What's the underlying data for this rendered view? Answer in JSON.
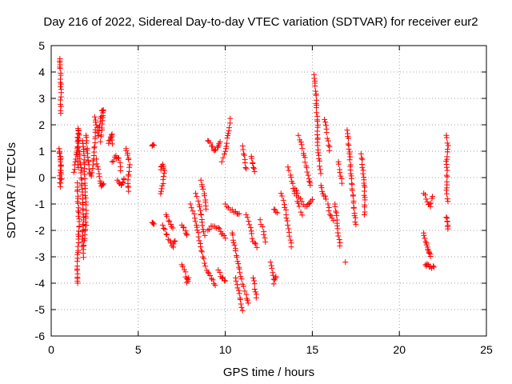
{
  "chart_data": {
    "type": "scatter",
    "title": "Day 216 of 2022, Sidereal Day-to-day VTEC variation (SDTVAR) for receiver eur2",
    "xlabel": "GPS time / hours",
    "ylabel": "SDTVAR / TECUs",
    "xlim": [
      0,
      25
    ],
    "ylim": [
      -6,
      5
    ],
    "xticks": [
      0,
      5,
      10,
      15,
      20,
      25
    ],
    "xtick_labels": [
      "0",
      "5",
      "10",
      "15",
      "20",
      "25"
    ],
    "yticks": [
      -6,
      -5,
      -4,
      -3,
      -2,
      -1,
      0,
      1,
      2,
      3,
      4,
      5
    ],
    "ytick_labels": [
      "-6",
      "-5",
      "-4",
      "-3",
      "-2",
      "-1",
      "0",
      "1",
      "2",
      "3",
      "4",
      "5"
    ],
    "grid": true,
    "marker": "+",
    "marker_color": "#ff0000",
    "series": [
      {
        "name": "SDTVAR",
        "traces": [
          [
            [
              0.45,
              1.1
            ],
            [
              0.5,
              0.9
            ],
            [
              0.55,
              0.4
            ],
            [
              0.6,
              0.0
            ],
            [
              0.5,
              -0.3
            ],
            [
              0.55,
              0.8
            ]
          ],
          [
            [
              0.5,
              4.5
            ],
            [
              0.5,
              4.3
            ],
            [
              0.55,
              4.0
            ],
            [
              0.55,
              3.3
            ],
            [
              0.55,
              2.4
            ]
          ],
          [
            [
              1.3,
              0.2
            ],
            [
              1.4,
              0.6
            ],
            [
              1.5,
              1.2
            ],
            [
              1.55,
              1.9
            ],
            [
              1.6,
              1.6
            ],
            [
              1.5,
              0.9
            ],
            [
              1.55,
              0.4
            ]
          ],
          [
            [
              1.5,
              -0.2
            ],
            [
              1.55,
              -1.0
            ],
            [
              1.6,
              -1.8
            ],
            [
              1.55,
              -2.6
            ],
            [
              1.5,
              -3.2
            ],
            [
              1.5,
              -3.8
            ],
            [
              1.5,
              -4.0
            ]
          ],
          [
            [
              1.6,
              1.0
            ],
            [
              1.7,
              0.5
            ],
            [
              1.75,
              -0.2
            ],
            [
              1.8,
              -0.8
            ],
            [
              1.85,
              -1.5
            ],
            [
              1.8,
              -2.2
            ],
            [
              1.8,
              -2.6
            ]
          ],
          [
            [
              1.8,
              1.4
            ],
            [
              1.9,
              0.6
            ],
            [
              1.95,
              -0.3
            ],
            [
              2.0,
              -1.2
            ],
            [
              2.0,
              -1.8
            ],
            [
              1.9,
              -2.4
            ],
            [
              1.85,
              -3.0
            ]
          ],
          [
            [
              2.0,
              1.6
            ],
            [
              2.1,
              0.8
            ],
            [
              2.2,
              0.2
            ],
            [
              2.3,
              0.1
            ],
            [
              2.4,
              0.5
            ],
            [
              2.5,
              1.2
            ],
            [
              2.55,
              1.8
            ]
          ],
          [
            [
              2.5,
              2.3
            ],
            [
              2.6,
              2.0
            ],
            [
              2.7,
              1.6
            ],
            [
              2.8,
              2.1
            ],
            [
              2.9,
              2.5
            ],
            [
              3.0,
              2.6
            ],
            [
              2.95,
              2.0
            ],
            [
              2.85,
              1.4
            ]
          ],
          [
            [
              2.6,
              0.7
            ],
            [
              2.7,
              0.3
            ],
            [
              2.8,
              -0.1
            ],
            [
              2.9,
              -0.3
            ],
            [
              3.0,
              -0.2
            ]
          ],
          [
            [
              3.3,
              1.3
            ],
            [
              3.4,
              1.5
            ],
            [
              3.5,
              1.6
            ],
            [
              3.5,
              1.3
            ]
          ],
          [
            [
              3.5,
              0.6
            ],
            [
              3.7,
              0.8
            ],
            [
              3.9,
              0.7
            ],
            [
              4.0,
              0.3
            ]
          ],
          [
            [
              3.8,
              -0.1
            ],
            [
              4.0,
              -0.3
            ],
            [
              4.1,
              -0.2
            ],
            [
              4.2,
              0.0
            ]
          ],
          [
            [
              4.3,
              1.1
            ],
            [
              4.4,
              0.9
            ],
            [
              4.5,
              0.5
            ],
            [
              4.4,
              -0.2
            ],
            [
              4.45,
              -0.5
            ]
          ],
          [
            [
              5.8,
              1.2
            ],
            [
              5.9,
              1.2
            ]
          ],
          [
            [
              5.8,
              -1.7
            ],
            [
              5.9,
              -1.8
            ]
          ],
          [
            [
              6.3,
              0.3
            ],
            [
              6.4,
              0.5
            ],
            [
              6.5,
              0.3
            ],
            [
              6.4,
              -0.3
            ],
            [
              6.3,
              -0.6
            ]
          ],
          [
            [
              6.4,
              -1.8
            ],
            [
              6.6,
              -2.1
            ],
            [
              6.8,
              -2.4
            ],
            [
              7.0,
              -2.6
            ],
            [
              7.1,
              -2.4
            ]
          ],
          [
            [
              6.6,
              -1.4
            ],
            [
              6.8,
              -1.7
            ],
            [
              7.0,
              -1.9
            ]
          ],
          [
            [
              7.5,
              -1.8
            ],
            [
              7.7,
              -2.0
            ],
            [
              7.8,
              -2.2
            ]
          ],
          [
            [
              7.5,
              -3.3
            ],
            [
              7.7,
              -3.6
            ],
            [
              7.8,
              -4.0
            ],
            [
              7.9,
              -3.8
            ]
          ],
          [
            [
              8.0,
              -1.0
            ],
            [
              8.2,
              -1.4
            ],
            [
              8.4,
              -2.0
            ],
            [
              8.6,
              -2.6
            ],
            [
              8.8,
              -3.2
            ],
            [
              9.0,
              -3.6
            ],
            [
              9.2,
              -3.8
            ],
            [
              9.4,
              -4.1
            ]
          ],
          [
            [
              8.3,
              -0.6
            ],
            [
              8.5,
              -1.0
            ],
            [
              8.7,
              -1.8
            ],
            [
              8.8,
              -2.2
            ]
          ],
          [
            [
              8.6,
              -0.1
            ],
            [
              8.8,
              -0.6
            ],
            [
              8.9,
              -1.2
            ]
          ],
          [
            [
              9.0,
              1.4
            ],
            [
              9.2,
              1.2
            ],
            [
              9.4,
              1.0
            ],
            [
              9.6,
              1.2
            ],
            [
              9.7,
              1.4
            ]
          ],
          [
            [
              9.0,
              -2.0
            ],
            [
              9.3,
              -1.8
            ],
            [
              9.6,
              -1.9
            ],
            [
              9.8,
              -2.1
            ],
            [
              10.0,
              -2.3
            ]
          ],
          [
            [
              9.6,
              -3.5
            ],
            [
              9.8,
              -3.8
            ],
            [
              10.0,
              -3.9
            ]
          ],
          [
            [
              9.8,
              0.6
            ],
            [
              10.0,
              1.0
            ],
            [
              10.2,
              1.8
            ],
            [
              10.3,
              2.2
            ]
          ],
          [
            [
              10.0,
              -1.0
            ],
            [
              10.3,
              -1.2
            ],
            [
              10.6,
              -1.3
            ],
            [
              10.8,
              -1.4
            ]
          ],
          [
            [
              10.4,
              -2.1
            ],
            [
              10.6,
              -2.8
            ],
            [
              10.8,
              -3.5
            ],
            [
              11.0,
              -4.0
            ],
            [
              11.2,
              -4.4
            ],
            [
              11.3,
              -4.8
            ]
          ],
          [
            [
              10.6,
              -3.8
            ],
            [
              10.8,
              -4.4
            ],
            [
              11.0,
              -5.0
            ]
          ],
          [
            [
              11.0,
              1.2
            ],
            [
              11.1,
              0.8
            ],
            [
              11.2,
              0.3
            ]
          ],
          [
            [
              11.2,
              -1.4
            ],
            [
              11.4,
              -1.8
            ],
            [
              11.6,
              -2.4
            ],
            [
              11.8,
              -2.6
            ]
          ],
          [
            [
              11.5,
              0.8
            ],
            [
              11.6,
              0.5
            ],
            [
              11.7,
              0.2
            ]
          ],
          [
            [
              11.6,
              -3.8
            ],
            [
              11.7,
              -4.2
            ],
            [
              11.8,
              -4.6
            ]
          ],
          [
            [
              12.0,
              -1.6
            ],
            [
              12.2,
              -2.0
            ],
            [
              12.3,
              -2.4
            ]
          ],
          [
            [
              12.6,
              -3.2
            ],
            [
              12.7,
              -3.6
            ],
            [
              12.8,
              -4.0
            ],
            [
              12.9,
              -3.7
            ]
          ],
          [
            [
              12.8,
              -1.2
            ],
            [
              13.0,
              -1.3
            ]
          ],
          [
            [
              13.2,
              -0.6
            ],
            [
              13.4,
              -1.0
            ],
            [
              13.5,
              -1.4
            ],
            [
              13.6,
              -1.8
            ],
            [
              13.7,
              -2.2
            ],
            [
              13.8,
              -2.6
            ]
          ],
          [
            [
              13.6,
              0.4
            ],
            [
              13.8,
              0.0
            ],
            [
              14.0,
              -0.6
            ],
            [
              14.2,
              -1.0
            ],
            [
              14.4,
              -1.4
            ]
          ],
          [
            [
              14.2,
              1.6
            ],
            [
              14.4,
              1.2
            ],
            [
              14.6,
              0.6
            ],
            [
              14.8,
              0.0
            ],
            [
              14.9,
              -0.3
            ]
          ],
          [
            [
              14.0,
              -0.4
            ],
            [
              14.3,
              -0.8
            ],
            [
              14.6,
              -1.1
            ],
            [
              14.8,
              -1.0
            ],
            [
              15.0,
              -0.8
            ]
          ],
          [
            [
              15.1,
              3.9
            ],
            [
              15.2,
              3.2
            ],
            [
              15.25,
              2.6
            ],
            [
              15.3,
              2.0
            ],
            [
              15.3,
              1.2
            ],
            [
              15.4,
              0.6
            ],
            [
              15.5,
              0.2
            ]
          ],
          [
            [
              15.5,
              -0.3
            ],
            [
              15.6,
              -0.6
            ],
            [
              15.8,
              -0.8
            ]
          ],
          [
            [
              15.7,
              2.2
            ],
            [
              15.8,
              1.8
            ],
            [
              15.9,
              1.4
            ],
            [
              16.0,
              1.0
            ]
          ],
          [
            [
              15.9,
              -1.0
            ],
            [
              16.0,
              -1.4
            ],
            [
              16.2,
              -1.6
            ]
          ],
          [
            [
              16.3,
              -1.0
            ],
            [
              16.4,
              -1.6
            ],
            [
              16.5,
              -2.2
            ],
            [
              16.6,
              -2.6
            ]
          ],
          [
            [
              16.5,
              0.6
            ],
            [
              16.6,
              0.2
            ],
            [
              16.7,
              -0.2
            ]
          ],
          [
            [
              17.0,
              1.8
            ],
            [
              17.1,
              1.2
            ],
            [
              17.2,
              0.4
            ],
            [
              17.3,
              -0.4
            ],
            [
              17.4,
              -1.2
            ],
            [
              17.5,
              -1.8
            ]
          ],
          [
            [
              16.9,
              -3.2
            ]
          ],
          [
            [
              17.8,
              0.9
            ],
            [
              17.9,
              0.4
            ],
            [
              18.0,
              -0.4
            ],
            [
              18.0,
              -1.0
            ],
            [
              18.0,
              -1.4
            ]
          ],
          [
            [
              21.4,
              -0.6
            ],
            [
              21.6,
              -0.9
            ],
            [
              21.8,
              -1.1
            ],
            [
              21.9,
              -0.7
            ]
          ],
          [
            [
              21.4,
              -2.1
            ],
            [
              21.5,
              -2.4
            ],
            [
              21.6,
              -2.6
            ],
            [
              21.7,
              -2.8
            ],
            [
              21.8,
              -3.0
            ]
          ],
          [
            [
              21.5,
              -3.3
            ],
            [
              21.6,
              -3.3
            ],
            [
              21.8,
              -3.4
            ],
            [
              22.0,
              -3.4
            ]
          ],
          [
            [
              22.7,
              1.6
            ],
            [
              22.8,
              1.2
            ],
            [
              22.7,
              0.6
            ],
            [
              22.75,
              0.0
            ],
            [
              22.7,
              -0.5
            ],
            [
              22.8,
              -0.9
            ]
          ],
          [
            [
              22.7,
              -1.5
            ],
            [
              22.75,
              -1.7
            ],
            [
              22.8,
              -1.9
            ]
          ]
        ]
      }
    ]
  }
}
